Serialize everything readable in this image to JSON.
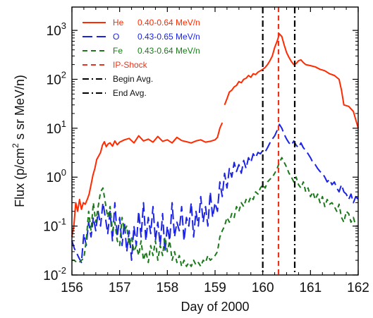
{
  "chart_data": {
    "type": "line",
    "xlabel": "Day of 2000",
    "ylabel_parts": [
      "Flux (p/cm",
      "2",
      " s sr  MeV/n)"
    ],
    "xlim": [
      156,
      162
    ],
    "ylim": [
      0.01,
      3000
    ],
    "yscale": "log",
    "x_ticks": [
      156,
      157,
      158,
      159,
      160,
      161,
      162
    ],
    "x_tick_labels": [
      "156",
      "157",
      "158",
      "159",
      "160",
      "161",
      "162"
    ],
    "y_ticks": [
      0.01,
      0.1,
      1,
      10,
      100,
      1000
    ],
    "y_tick_bases": [
      "10",
      "10",
      "10",
      "10",
      "10",
      "10"
    ],
    "y_tick_exponents": [
      "-2",
      "-1",
      "0",
      "1",
      "2",
      "3"
    ],
    "legend_position": "top-left",
    "series": [
      {
        "name": "He",
        "energy": "0.40-0.64 MeV/n",
        "color": "#ff2a00",
        "dash": "solid",
        "x": [
          156.0,
          156.04,
          156.08,
          156.12,
          156.16,
          156.2,
          156.24,
          156.28,
          156.32,
          156.36,
          156.4,
          156.44,
          156.48,
          156.52,
          156.56,
          156.6,
          156.64,
          156.68,
          156.72,
          156.76,
          156.8,
          156.85,
          156.9,
          156.95,
          157.0,
          157.1,
          157.2,
          157.3,
          157.4,
          157.5,
          157.6,
          157.7,
          157.8,
          157.9,
          158.0,
          158.1,
          158.2,
          158.3,
          158.4,
          158.5,
          158.6,
          158.7,
          158.8,
          158.9,
          159.0,
          159.05,
          159.1,
          159.15
        ],
        "y": [
          0.06,
          0.1,
          0.3,
          0.2,
          0.35,
          0.22,
          0.3,
          0.28,
          0.35,
          0.45,
          0.7,
          1.1,
          1.5,
          2.3,
          2.7,
          3.2,
          4.5,
          5.3,
          4.2,
          4.8,
          5.0,
          4.3,
          5.5,
          4.6,
          5.2,
          5.8,
          6.2,
          5.0,
          7.0,
          5.5,
          6.0,
          5.2,
          6.8,
          5.4,
          5.8,
          5.0,
          6.5,
          5.6,
          5.3,
          5.0,
          5.5,
          5.8,
          5.2,
          5.4,
          5.8,
          6.5,
          10.0,
          13.0
        ]
      },
      {
        "name": "He",
        "energy": "0.40-0.64 MeV/n",
        "color": "#ff2a00",
        "dash": "solid",
        "x": [
          159.2,
          159.25,
          159.3,
          159.35,
          159.4,
          159.45,
          159.5,
          159.55,
          159.6,
          159.65,
          159.7,
          159.75,
          159.8,
          159.85,
          159.9,
          159.95,
          160.0,
          160.05,
          160.1,
          160.15,
          160.2,
          160.25,
          160.3,
          160.35,
          160.4,
          160.45,
          160.5,
          160.55,
          160.6,
          160.65,
          160.7,
          160.75,
          160.8,
          160.85,
          160.9,
          161.0,
          161.1,
          161.2,
          161.3,
          161.4,
          161.5,
          161.6,
          161.65,
          161.7,
          161.8,
          161.9,
          162.0
        ],
        "y": [
          30,
          40,
          55,
          60,
          70,
          75,
          90,
          85,
          100,
          105,
          120,
          110,
          130,
          125,
          140,
          150,
          160,
          175,
          200,
          240,
          300,
          450,
          600,
          850,
          750,
          500,
          350,
          280,
          230,
          200,
          210,
          240,
          250,
          220,
          200,
          190,
          180,
          160,
          150,
          130,
          120,
          100,
          60,
          30,
          28,
          22,
          10
        ]
      },
      {
        "name": "O",
        "energy": "0.43-0.65 MeV/n",
        "color": "#1a22e8",
        "dash": "long-dash",
        "x": [
          156.0,
          156.05,
          156.1,
          156.15,
          156.2,
          156.25,
          156.3,
          156.35,
          156.4,
          156.45,
          156.5,
          156.55,
          156.6,
          156.65,
          156.7,
          156.75,
          156.8,
          156.85,
          156.9,
          156.95,
          157.0,
          157.05,
          157.1,
          157.15,
          157.2,
          157.25,
          157.3,
          157.35,
          157.4,
          157.45,
          157.5,
          157.55,
          157.6,
          157.65,
          157.7,
          157.75,
          157.8,
          157.85,
          157.9,
          157.95,
          158.0,
          158.05,
          158.1,
          158.15,
          158.2,
          158.25,
          158.3,
          158.35,
          158.4,
          158.45,
          158.5,
          158.55,
          158.6,
          158.65,
          158.7,
          158.75,
          158.8,
          158.85,
          158.9,
          158.95,
          159.0,
          159.05,
          159.1,
          159.15,
          159.2,
          159.25,
          159.3,
          159.35,
          159.4,
          159.45,
          159.5,
          159.55,
          159.6,
          159.65,
          159.7,
          159.75,
          159.8,
          159.85,
          159.9,
          159.95,
          160.0,
          160.05,
          160.1,
          160.15,
          160.2,
          160.25,
          160.3,
          160.35,
          160.4,
          160.45,
          160.5,
          160.55,
          160.6,
          160.65,
          160.7,
          160.75,
          160.8,
          160.85,
          160.9,
          160.95,
          161.0,
          161.05,
          161.1,
          161.15,
          161.2,
          161.25,
          161.3,
          161.35,
          161.4,
          161.45,
          161.5,
          161.55,
          161.6,
          161.65,
          161.7,
          161.75,
          161.8,
          161.85,
          161.9,
          161.95,
          162.0
        ],
        "y": [
          0.05,
          0.035,
          0.028,
          0.022,
          0.018,
          0.07,
          0.04,
          0.12,
          0.06,
          0.15,
          0.08,
          0.2,
          0.1,
          0.3,
          0.15,
          0.07,
          0.2,
          0.05,
          0.3,
          0.06,
          0.15,
          0.04,
          0.12,
          0.03,
          0.08,
          0.02,
          0.1,
          0.04,
          0.2,
          0.06,
          0.3,
          0.05,
          0.15,
          0.07,
          0.25,
          0.05,
          0.12,
          0.04,
          0.18,
          0.03,
          0.1,
          0.05,
          0.3,
          0.06,
          0.12,
          0.08,
          0.25,
          0.05,
          0.15,
          0.1,
          0.3,
          0.06,
          0.2,
          0.1,
          0.4,
          0.12,
          0.25,
          0.1,
          0.5,
          0.15,
          0.3,
          0.2,
          0.8,
          0.4,
          1.2,
          0.6,
          1.5,
          1.0,
          2.0,
          1.3,
          1.8,
          1.2,
          2.2,
          1.5,
          2.5,
          2.0,
          3.0,
          2.5,
          3.2,
          3.0,
          3.5,
          3.3,
          4.0,
          5.0,
          6.0,
          7.0,
          9.0,
          12.0,
          10.0,
          7.5,
          6.0,
          5.0,
          4.5,
          5.5,
          4.5,
          4.0,
          5.0,
          4.0,
          3.5,
          3.0,
          2.5,
          2.0,
          1.8,
          1.5,
          1.3,
          1.2,
          1.0,
          0.8,
          0.9,
          0.7,
          0.8,
          0.6,
          0.5,
          0.7,
          0.5,
          0.45,
          0.35,
          0.45,
          0.3,
          0.4,
          0.35
        ]
      },
      {
        "name": "Fe",
        "energy": "0.43-0.64 MeV/n",
        "color": "#1a7a1a",
        "dash": "dash",
        "x": [
          156.0,
          156.05,
          156.1,
          156.15,
          156.2,
          156.25,
          156.3,
          156.35,
          156.4,
          156.45,
          156.5,
          156.55,
          156.6,
          156.65,
          156.7,
          156.75,
          156.8,
          156.85,
          156.9,
          156.95,
          157.0,
          157.05,
          157.1,
          157.15,
          157.2,
          157.25,
          157.3,
          157.35,
          157.4,
          157.45,
          157.5,
          157.55,
          157.6,
          157.65,
          157.7,
          157.75,
          157.8,
          157.85,
          157.9,
          157.95,
          158.0,
          158.05,
          158.1,
          158.15,
          158.2,
          158.25,
          158.3,
          158.35,
          158.4,
          158.45,
          158.5,
          158.55,
          158.6,
          158.65,
          158.7,
          158.75,
          158.8,
          158.85,
          158.9,
          158.95,
          159.0,
          159.05,
          159.1,
          159.15,
          159.2,
          159.25,
          159.3,
          159.35,
          159.4,
          159.45,
          159.5,
          159.55,
          159.6,
          159.65,
          159.7,
          159.75,
          159.8,
          159.85,
          159.9,
          159.95,
          160.0,
          160.05,
          160.1,
          160.15,
          160.2,
          160.25,
          160.3,
          160.35,
          160.4,
          160.45,
          160.5,
          160.55,
          160.6,
          160.65,
          160.7,
          160.75,
          160.8,
          160.85,
          160.9,
          160.95,
          161.0,
          161.05,
          161.1,
          161.15,
          161.2,
          161.25,
          161.3,
          161.35,
          161.4,
          161.45,
          161.5,
          161.55,
          161.6,
          161.65,
          161.7,
          161.75,
          161.8,
          161.85,
          161.9,
          161.95,
          162.0
        ],
        "y": [
          0.02,
          0.02,
          0.018,
          0.018,
          0.02,
          0.022,
          0.05,
          0.2,
          0.08,
          0.3,
          0.12,
          0.25,
          0.5,
          0.6,
          0.3,
          0.15,
          0.25,
          0.08,
          0.12,
          0.05,
          0.04,
          0.15,
          0.08,
          0.1,
          0.04,
          0.06,
          0.03,
          0.04,
          0.025,
          0.05,
          0.02,
          0.03,
          0.018,
          0.04,
          0.025,
          0.05,
          0.02,
          0.04,
          0.025,
          0.06,
          0.03,
          0.05,
          0.02,
          0.03,
          0.018,
          0.025,
          0.015,
          0.02,
          0.015,
          0.018,
          0.015,
          0.02,
          0.016,
          0.018,
          0.015,
          0.02,
          0.018,
          0.025,
          0.02,
          0.022,
          0.025,
          0.03,
          0.06,
          0.08,
          0.1,
          0.15,
          0.12,
          0.18,
          0.15,
          0.25,
          0.2,
          0.3,
          0.25,
          0.35,
          0.3,
          0.4,
          0.35,
          0.5,
          0.45,
          0.6,
          0.7,
          0.6,
          0.8,
          0.9,
          1.0,
          1.2,
          1.5,
          2.0,
          2.5,
          2.0,
          1.6,
          1.2,
          1.0,
          0.8,
          1.0,
          0.7,
          0.6,
          0.8,
          0.5,
          0.6,
          0.4,
          0.5,
          0.35,
          0.45,
          0.3,
          0.4,
          0.25,
          0.35,
          0.28,
          0.3,
          0.25,
          0.2,
          0.28,
          0.15,
          0.12,
          0.2,
          0.18,
          0.12,
          0.15,
          0.1,
          0.1
        ]
      }
    ],
    "vertical_lines": [
      {
        "name": "IP-Shock",
        "x": 160.33,
        "color": "#e8341c",
        "dash": "dash"
      },
      {
        "name": "Begin Avg.",
        "x": 160.0,
        "color": "#000000",
        "dash": "dash-dot"
      },
      {
        "name": "End Avg.",
        "x": 160.67,
        "color": "#000000",
        "dash": "dash-dot"
      }
    ],
    "legend": [
      {
        "label": "He",
        "detail": "0.40-0.64 MeV/n",
        "color": "#ff2a00",
        "dash": "solid"
      },
      {
        "label": "O",
        "detail": "0.43-0.65 MeV/n",
        "color": "#1a22e8",
        "dash": "long-dash"
      },
      {
        "label": "Fe",
        "detail": "0.43-0.64 MeV/n",
        "color": "#1a7a1a",
        "dash": "dash"
      },
      {
        "label": "IP-Shock",
        "detail": "",
        "color": "#e8341c",
        "dash": "dash"
      },
      {
        "label": "Begin Avg.",
        "detail": "",
        "color": "#000000",
        "dash": "dash-dot"
      },
      {
        "label": "End Avg.",
        "detail": "",
        "color": "#000000",
        "dash": "dash-dot"
      }
    ]
  }
}
